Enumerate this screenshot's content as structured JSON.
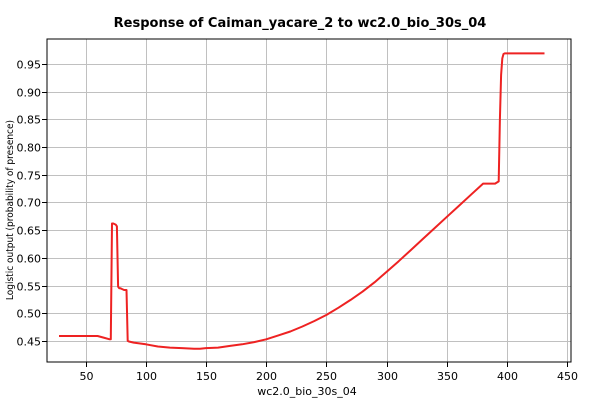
{
  "chart_data": {
    "type": "line",
    "title": "Response of Caiman_yacare_2 to wc2.0_bio_30s_04",
    "xlabel": "wc2.0_bio_30s_04",
    "ylabel": "Logistic output (probability of presence)",
    "xlim": [
      18,
      453
    ],
    "ylim": [
      0.412,
      0.995
    ],
    "xticks": [
      50,
      100,
      150,
      200,
      250,
      300,
      350,
      400,
      450
    ],
    "yticks": [
      0.45,
      0.5,
      0.55,
      0.6,
      0.65,
      0.7,
      0.75,
      0.8,
      0.85,
      0.9,
      0.95
    ],
    "grid": true,
    "colors": {
      "line": "#ee2222",
      "grid": "#c0c0c0",
      "axes": "#000000"
    },
    "series": [
      {
        "name": "",
        "x": [
          28,
          45,
          60,
          65,
          70,
          71,
          72,
          73,
          75,
          76,
          77,
          78,
          79,
          80,
          82,
          84,
          85,
          86,
          90,
          100,
          110,
          120,
          130,
          140,
          145,
          150,
          160,
          170,
          180,
          190,
          200,
          210,
          220,
          230,
          240,
          250,
          260,
          270,
          280,
          290,
          300,
          310,
          320,
          330,
          340,
          350,
          360,
          370,
          380,
          390,
          393,
          394,
          395,
          396,
          397,
          398,
          400,
          410,
          420,
          431
        ],
        "y": [
          0.459,
          0.459,
          0.459,
          0.456,
          0.453,
          0.453,
          0.662,
          0.662,
          0.66,
          0.657,
          0.548,
          0.545,
          0.545,
          0.544,
          0.542,
          0.542,
          0.45,
          0.449,
          0.447,
          0.444,
          0.44,
          0.438,
          0.437,
          0.436,
          0.436,
          0.437,
          0.438,
          0.441,
          0.444,
          0.448,
          0.453,
          0.46,
          0.467,
          0.476,
          0.486,
          0.497,
          0.51,
          0.524,
          0.539,
          0.556,
          0.575,
          0.594,
          0.614,
          0.634,
          0.654,
          0.674,
          0.694,
          0.714,
          0.734,
          0.734,
          0.738,
          0.85,
          0.93,
          0.96,
          0.968,
          0.969,
          0.969,
          0.969,
          0.969,
          0.969
        ]
      }
    ]
  }
}
